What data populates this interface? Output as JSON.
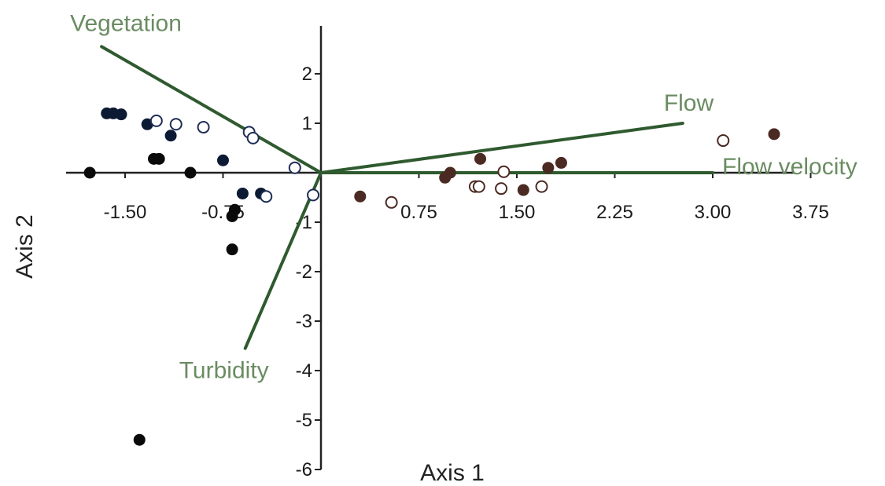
{
  "chart_data": {
    "type": "scatter",
    "xlabel": "Axis 1",
    "ylabel": "Axis 2",
    "xlim": [
      -1.9,
      4.0
    ],
    "ylim": [
      -6.2,
      2.9
    ],
    "x_ticks": [
      {
        "value": -1.5,
        "label": "-1.50"
      },
      {
        "value": -0.75,
        "label": "-0.75"
      },
      {
        "value": 0.75,
        "label": "0.75"
      },
      {
        "value": 1.5,
        "label": "1.50"
      },
      {
        "value": 2.25,
        "label": "2.25"
      },
      {
        "value": 3.0,
        "label": "3.00"
      },
      {
        "value": 3.75,
        "label": "3.75"
      }
    ],
    "y_ticks": [
      {
        "value": 2,
        "label": "2"
      },
      {
        "value": 1,
        "label": "1"
      },
      {
        "value": -1,
        "label": "-1"
      },
      {
        "value": -2,
        "label": "-2"
      },
      {
        "value": -3,
        "label": "-3"
      },
      {
        "value": -4,
        "label": "-4"
      },
      {
        "value": -5,
        "label": "-5"
      },
      {
        "value": -6,
        "label": "-6"
      }
    ],
    "vectors": [
      {
        "label": "Vegetation",
        "x": -1.68,
        "y": 2.55
      },
      {
        "label": "Flow",
        "x": 2.77,
        "y": 1.0
      },
      {
        "label": "Flow velocity",
        "x": 3.0,
        "y": 0.0
      },
      {
        "label": "Turbidity",
        "x": -0.58,
        "y": -3.55
      }
    ],
    "points": [
      {
        "x": -1.77,
        "y": 0.0,
        "filled": true,
        "color": "#0a0a0a"
      },
      {
        "x": -1.64,
        "y": 1.2,
        "filled": true,
        "color": "#0d1a33"
      },
      {
        "x": -1.59,
        "y": 1.2,
        "filled": true,
        "color": "#0d1a33"
      },
      {
        "x": -1.53,
        "y": 1.18,
        "filled": true,
        "color": "#0d1a33"
      },
      {
        "x": -1.33,
        "y": 0.98,
        "filled": true,
        "color": "#0d1a33"
      },
      {
        "x": -1.26,
        "y": 1.05,
        "filled": false,
        "color": "#1f2d55"
      },
      {
        "x": -1.28,
        "y": 0.28,
        "filled": true,
        "color": "#0a0a0a"
      },
      {
        "x": -1.24,
        "y": 0.28,
        "filled": true,
        "color": "#0a0a0a"
      },
      {
        "x": -1.15,
        "y": 0.75,
        "filled": true,
        "color": "#0d1a33"
      },
      {
        "x": -1.11,
        "y": 0.98,
        "filled": false,
        "color": "#1f2d55"
      },
      {
        "x": -1.0,
        "y": 0.0,
        "filled": true,
        "color": "#0a0a0a"
      },
      {
        "x": -0.9,
        "y": 0.92,
        "filled": false,
        "color": "#1f2d55"
      },
      {
        "x": -0.75,
        "y": 0.25,
        "filled": true,
        "color": "#0d1a33"
      },
      {
        "x": -0.55,
        "y": 0.82,
        "filled": false,
        "color": "#1f2d55"
      },
      {
        "x": -0.52,
        "y": 0.7,
        "filled": false,
        "color": "#1f2d55"
      },
      {
        "x": -0.6,
        "y": -0.42,
        "filled": true,
        "color": "#0d1a33"
      },
      {
        "x": -0.46,
        "y": -0.42,
        "filled": true,
        "color": "#0d1a33"
      },
      {
        "x": -0.42,
        "y": -0.48,
        "filled": false,
        "color": "#1f2d55"
      },
      {
        "x": -0.66,
        "y": -0.75,
        "filled": true,
        "color": "#0a0a0a"
      },
      {
        "x": -0.68,
        "y": -0.88,
        "filled": true,
        "color": "#0a0a0a"
      },
      {
        "x": -0.68,
        "y": -1.55,
        "filled": true,
        "color": "#0a0a0a"
      },
      {
        "x": -1.39,
        "y": -5.4,
        "filled": true,
        "color": "#0a0a0a"
      },
      {
        "x": -0.2,
        "y": 0.1,
        "filled": false,
        "color": "#1f2d55"
      },
      {
        "x": -0.06,
        "y": -0.45,
        "filled": false,
        "color": "#1f2d55"
      },
      {
        "x": 0.3,
        "y": -0.48,
        "filled": true,
        "color": "#4a2a22"
      },
      {
        "x": 0.54,
        "y": -0.6,
        "filled": false,
        "color": "#4a2a22"
      },
      {
        "x": 0.95,
        "y": -0.1,
        "filled": true,
        "color": "#4a2a22"
      },
      {
        "x": 0.99,
        "y": 0.0,
        "filled": true,
        "color": "#4a2a22"
      },
      {
        "x": 1.22,
        "y": 0.28,
        "filled": true,
        "color": "#4a2a22"
      },
      {
        "x": 1.18,
        "y": -0.28,
        "filled": false,
        "color": "#4a2a22"
      },
      {
        "x": 1.21,
        "y": -0.28,
        "filled": false,
        "color": "#4a2a22"
      },
      {
        "x": 1.38,
        "y": -0.32,
        "filled": false,
        "color": "#4a2a22"
      },
      {
        "x": 1.4,
        "y": 0.02,
        "filled": false,
        "color": "#4a2a22"
      },
      {
        "x": 1.55,
        "y": -0.35,
        "filled": true,
        "color": "#4a2a22"
      },
      {
        "x": 1.69,
        "y": -0.28,
        "filled": false,
        "color": "#4a2a22"
      },
      {
        "x": 1.74,
        "y": 0.1,
        "filled": true,
        "color": "#4a2a22"
      },
      {
        "x": 1.84,
        "y": 0.2,
        "filled": true,
        "color": "#4a2a22"
      },
      {
        "x": 3.08,
        "y": 0.65,
        "filled": false,
        "color": "#4a2a22"
      },
      {
        "x": 3.47,
        "y": 0.78,
        "filled": true,
        "color": "#4a2a22"
      }
    ],
    "colors": {
      "vector_line": "#2f5a2f",
      "vector_label": "#6a8c62",
      "axis": "#222222"
    }
  }
}
